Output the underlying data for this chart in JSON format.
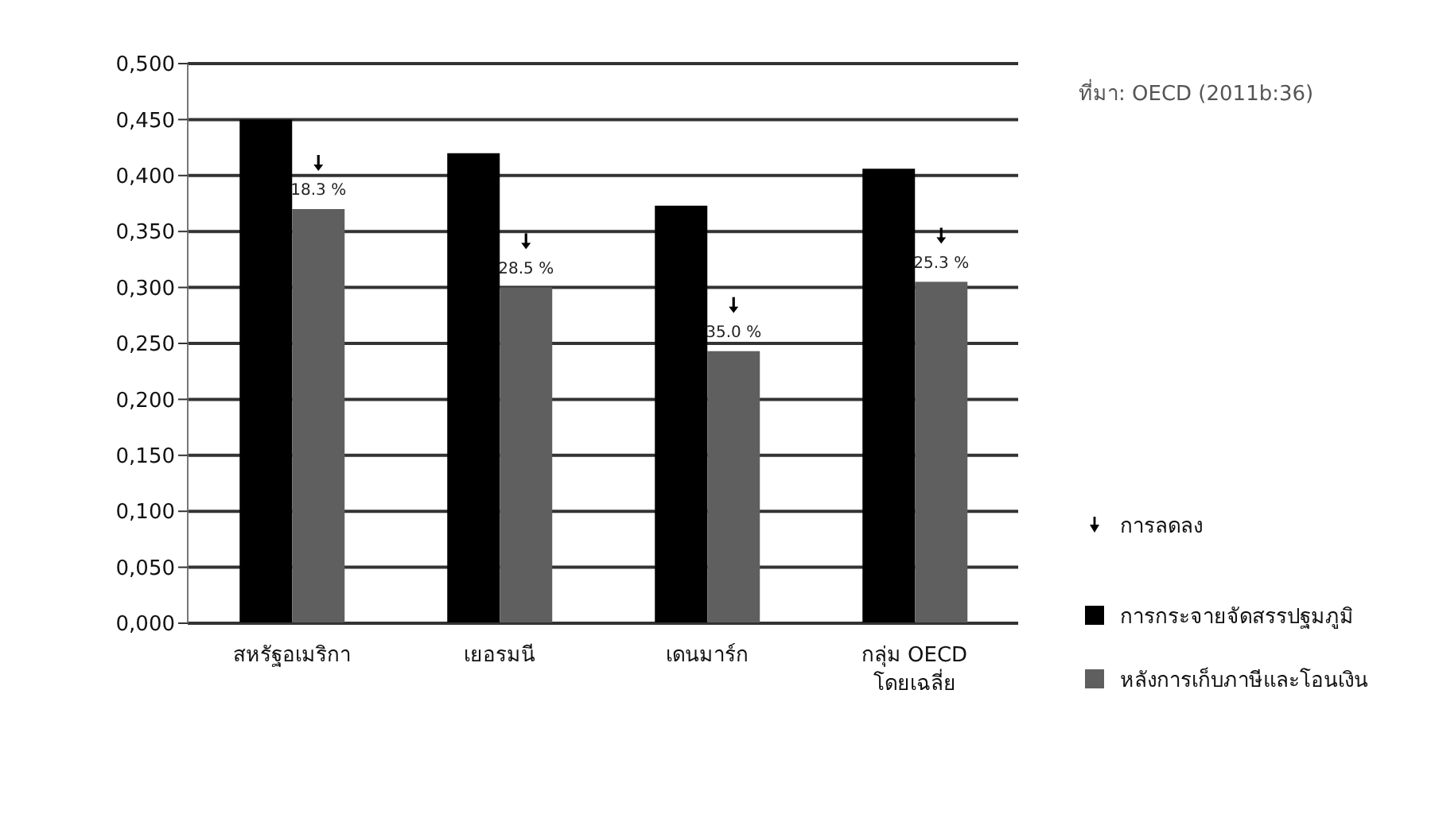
{
  "chart_data": {
    "type": "bar",
    "categories": [
      "สหรัฐอเมริกา",
      "เยอรมนี",
      "เดนมาร์ก",
      "กลุ่ม OECD โดยเฉลี่ย"
    ],
    "series": [
      {
        "name": "การกระจายจัดสรรปฐมภูมิ",
        "color": "#000000",
        "values": [
          0.45,
          0.42,
          0.373,
          0.406
        ]
      },
      {
        "name": "หลังการเก็บภาษีและโอนเงิน",
        "color": "#5f5f5f",
        "values": [
          0.37,
          0.3,
          0.243,
          0.305
        ]
      }
    ],
    "ylim": [
      0,
      0.5
    ],
    "yticks": [
      {
        "value": 0,
        "label": "0,000"
      },
      {
        "value": 0.05,
        "label": "0,050"
      },
      {
        "value": 0.1,
        "label": "0,100"
      },
      {
        "value": 0.15,
        "label": "0,150"
      },
      {
        "value": 0.2,
        "label": "0,200"
      },
      {
        "value": 0.25,
        "label": "0,250"
      },
      {
        "value": 0.3,
        "label": "0,300"
      },
      {
        "value": 0.35,
        "label": "0,350"
      },
      {
        "value": 0.4,
        "label": "0,400"
      },
      {
        "value": 0.45,
        "label": "0,450"
      },
      {
        "value": 0.5,
        "label": "0,500"
      }
    ],
    "grid": "y",
    "legend": "right",
    "annotations": [
      "ที่มา: OECD (2011b:36)",
      "การลดลง",
      {
        "text": "18.3 %",
        "x": "สหรัฐอเมริกา",
        "y": 0.37
      },
      {
        "text": "28.5 %",
        "x": "เยอรมนี",
        "y": 0.3
      },
      {
        "text": "35.0 %",
        "x": "เดนมาร์ก",
        "y": 0.243
      },
      {
        "text": "25.3 %",
        "x": "กลุ่ม OECD โดยเฉลี่ย",
        "y": 0.305
      }
    ]
  }
}
